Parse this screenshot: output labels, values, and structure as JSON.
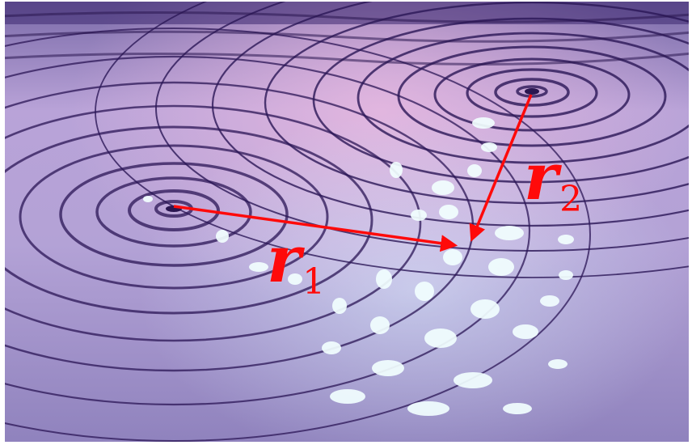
{
  "image": {
    "description_icon": "water-ripple-interference-icon",
    "colors": {
      "arrow": "#ff0a0a",
      "label": "#ff0a0a",
      "surface_light": "#c8b6e2",
      "surface_mid": "#a48fcc",
      "surface_dark": "#4a2f80",
      "crest": "#2a1650",
      "glint": "#f0ffff"
    }
  },
  "labels": {
    "r1": {
      "symbol": "r",
      "subscript": "1"
    },
    "r2": {
      "symbol": "r",
      "subscript": "2"
    }
  }
}
